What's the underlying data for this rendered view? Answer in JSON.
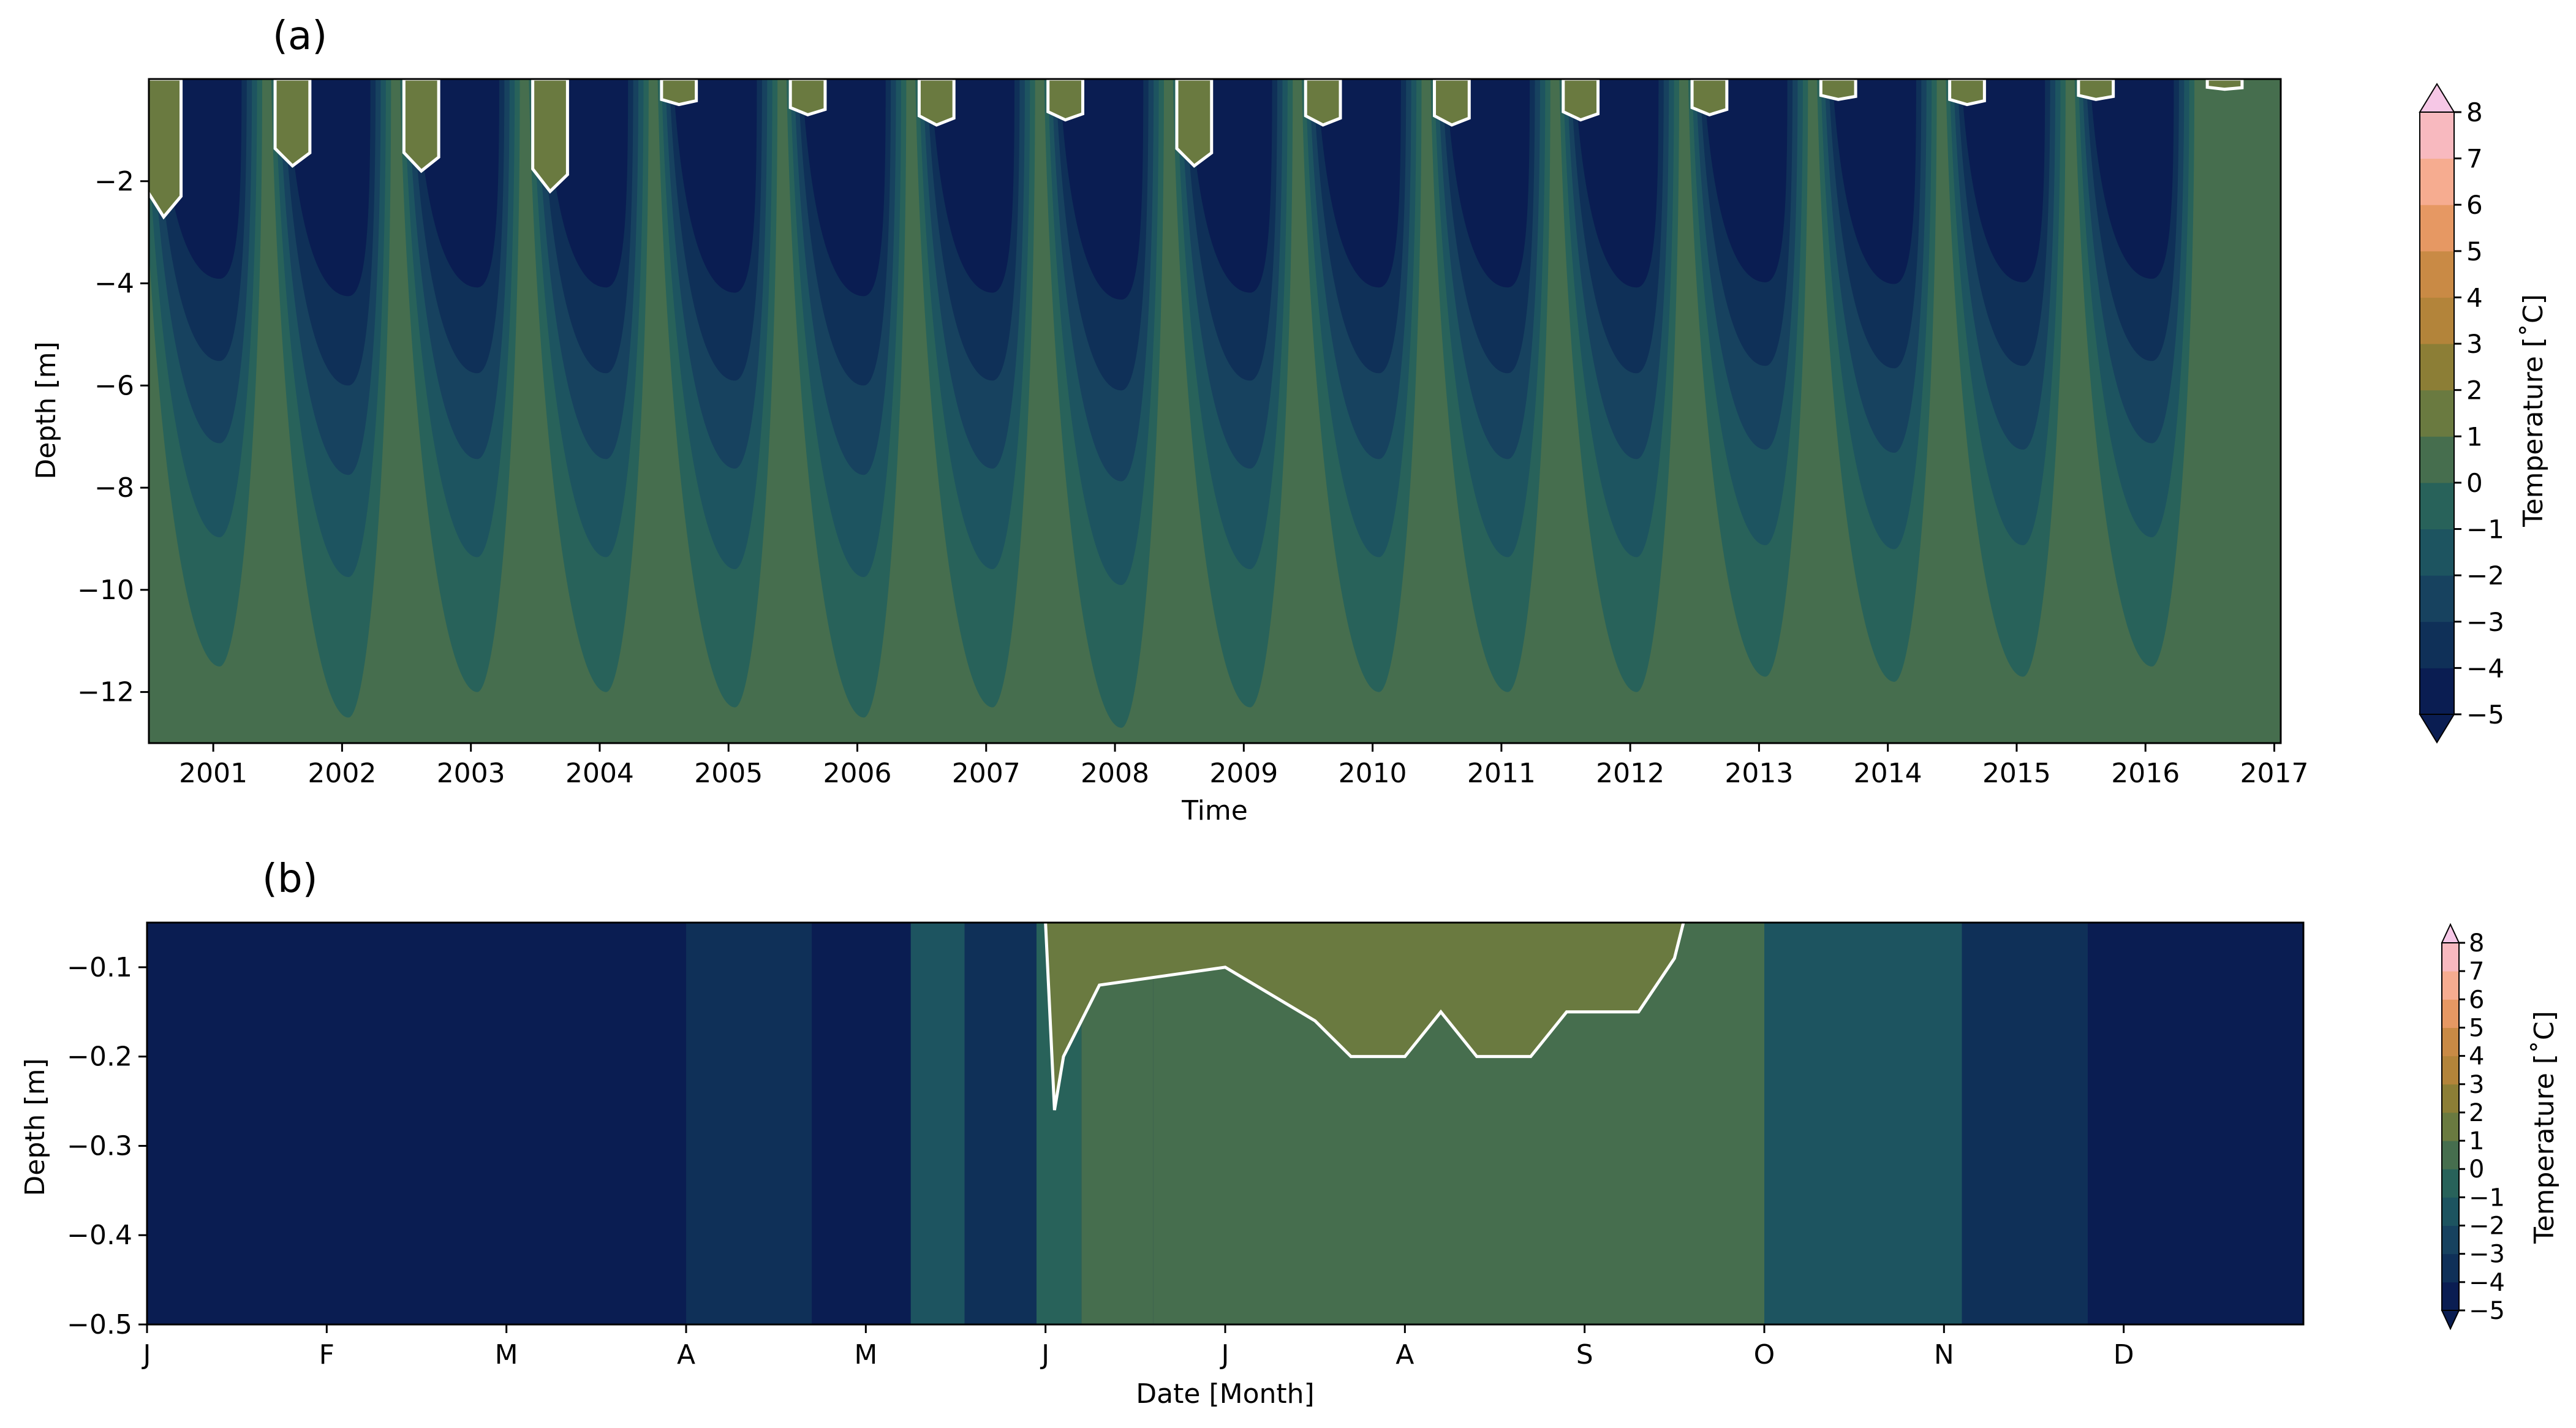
{
  "chart_data": [
    {
      "type": "heatmap",
      "panel_label": "(a)",
      "title": "",
      "xlabel": "Time",
      "ylabel": "Depth [m]",
      "x_ticks": [
        "2001",
        "2002",
        "2003",
        "2004",
        "2005",
        "2006",
        "2007",
        "2008",
        "2009",
        "2010",
        "2011",
        "2012",
        "2013",
        "2014",
        "2015",
        "2016",
        "2017"
      ],
      "x_range": [
        2000.5,
        2017.05
      ],
      "y_ticks": [
        "−2",
        "−4",
        "−6",
        "−8",
        "−10",
        "−12"
      ],
      "y_range": [
        -13,
        0
      ],
      "winter_freeze_depth_m": [
        {
          "year": 2001,
          "min_depth": -11.5
        },
        {
          "year": 2002,
          "min_depth": -12.5
        },
        {
          "year": 2003,
          "min_depth": -12.0
        },
        {
          "year": 2004,
          "min_depth": -12.0
        },
        {
          "year": 2005,
          "min_depth": -12.3
        },
        {
          "year": 2006,
          "min_depth": -12.5
        },
        {
          "year": 2007,
          "min_depth": -12.3
        },
        {
          "year": 2008,
          "min_depth": -12.7
        },
        {
          "year": 2009,
          "min_depth": -12.3
        },
        {
          "year": 2010,
          "min_depth": -12.0
        },
        {
          "year": 2011,
          "min_depth": -12.0
        },
        {
          "year": 2012,
          "min_depth": -12.0
        },
        {
          "year": 2013,
          "min_depth": -11.7
        },
        {
          "year": 2014,
          "min_depth": -11.8
        },
        {
          "year": 2015,
          "min_depth": -11.7
        },
        {
          "year": 2016,
          "min_depth": -11.5
        }
      ],
      "summer_thaw_depth_m": [
        {
          "year": 2000.6,
          "max_depth": -2.7
        },
        {
          "year": 2001.6,
          "max_depth": -1.7
        },
        {
          "year": 2002.6,
          "max_depth": -1.8
        },
        {
          "year": 2003.6,
          "max_depth": -2.2
        },
        {
          "year": 2004.6,
          "max_depth": -0.5
        },
        {
          "year": 2005.6,
          "max_depth": -0.7
        },
        {
          "year": 2006.6,
          "max_depth": -0.9
        },
        {
          "year": 2007.6,
          "max_depth": -0.8
        },
        {
          "year": 2008.6,
          "max_depth": -1.7
        },
        {
          "year": 2009.6,
          "max_depth": -0.9
        },
        {
          "year": 2010.6,
          "max_depth": -0.9
        },
        {
          "year": 2011.6,
          "max_depth": -0.8
        },
        {
          "year": 2012.6,
          "max_depth": -0.7
        },
        {
          "year": 2013.6,
          "max_depth": -0.4
        },
        {
          "year": 2014.6,
          "max_depth": -0.5
        },
        {
          "year": 2015.6,
          "max_depth": -0.4
        },
        {
          "year": 2016.6,
          "max_depth": -0.2
        }
      ],
      "colorbar": {
        "label": "Temperature [˚C]",
        "ticks": [
          "−5",
          "−4",
          "−3",
          "−2",
          "−1",
          "0",
          "1",
          "2",
          "3",
          "4",
          "5",
          "6",
          "7",
          "8"
        ],
        "levels": [
          -5,
          -4,
          -3,
          -2,
          -1,
          0,
          1,
          2,
          3,
          4,
          5,
          6,
          7,
          8
        ],
        "colors": [
          "#0a1d52",
          "#0f3058",
          "#17425f",
          "#1d5460",
          "#28625a",
          "#466e4e",
          "#6a7a40",
          "#8c7e36",
          "#b3843a",
          "#c98a45",
          "#e69863",
          "#f6ac90",
          "#f8b9bf",
          "#f6c7e6"
        ]
      },
      "zero_contour_color": "#ffffff"
    },
    {
      "type": "heatmap",
      "panel_label": "(b)",
      "title": "",
      "xlabel": "Date [Month]",
      "ylabel": "Depth [m]",
      "x_ticks": [
        "J",
        "F",
        "M",
        "A",
        "M",
        "J",
        "J",
        "A",
        "S",
        "O",
        "N",
        "D"
      ],
      "x_range": [
        0,
        12
      ],
      "y_ticks": [
        "−0.1",
        "−0.2",
        "−0.3",
        "−0.4",
        "−0.5"
      ],
      "y_range": [
        -0.5,
        -0.05
      ],
      "segments": [
        {
          "from_month": 0.0,
          "to_month": 3.0,
          "temp_c": -5
        },
        {
          "from_month": 3.0,
          "to_month": 3.7,
          "temp_c": -4
        },
        {
          "from_month": 3.7,
          "to_month": 4.25,
          "temp_c": -5
        },
        {
          "from_month": 4.25,
          "to_month": 4.55,
          "temp_c": -2
        },
        {
          "from_month": 4.55,
          "to_month": 4.95,
          "temp_c": -4
        },
        {
          "from_month": 4.95,
          "to_month": 5.2,
          "temp_c": -1
        },
        {
          "from_month": 5.2,
          "to_month": 5.6,
          "temp_c": 0
        },
        {
          "from_month": 5.6,
          "to_month": 9.0,
          "temp_c": 0
        },
        {
          "from_month": 9.0,
          "to_month": 10.1,
          "temp_c": -2
        },
        {
          "from_month": 10.1,
          "to_month": 10.8,
          "temp_c": -4
        },
        {
          "from_month": 10.8,
          "to_month": 12.0,
          "temp_c": -5
        }
      ],
      "thaw_front": [
        {
          "month": 5.0,
          "depth": -0.05
        },
        {
          "month": 5.05,
          "depth": -0.26
        },
        {
          "month": 5.1,
          "depth": -0.2
        },
        {
          "month": 5.3,
          "depth": -0.12
        },
        {
          "month": 6.0,
          "depth": -0.1
        },
        {
          "month": 6.5,
          "depth": -0.16
        },
        {
          "month": 6.7,
          "depth": -0.2
        },
        {
          "month": 7.0,
          "depth": -0.2
        },
        {
          "month": 7.2,
          "depth": -0.15
        },
        {
          "month": 7.4,
          "depth": -0.2
        },
        {
          "month": 7.7,
          "depth": -0.2
        },
        {
          "month": 7.9,
          "depth": -0.15
        },
        {
          "month": 8.3,
          "depth": -0.15
        },
        {
          "month": 8.5,
          "depth": -0.09
        },
        {
          "month": 8.55,
          "depth": -0.05
        }
      ],
      "colorbar": {
        "label": "Temperature [˚C]",
        "ticks": [
          "−5",
          "−4",
          "−3",
          "−2",
          "−1",
          "0",
          "1",
          "2",
          "3",
          "4",
          "5",
          "6",
          "7",
          "8"
        ]
      },
      "zero_contour_color": "#ffffff"
    }
  ]
}
